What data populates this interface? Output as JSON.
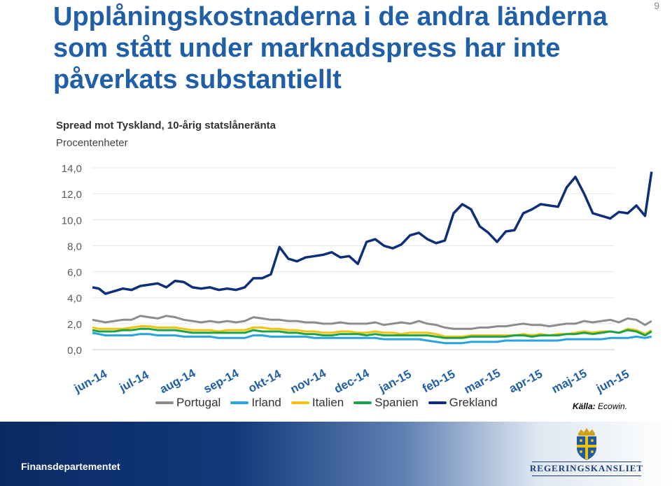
{
  "page_number": "9",
  "title": "Upplåningskostnaderna i de andra länderna som stått under marknadspress har inte påverkats substantiellt",
  "footer": {
    "department": "Finansdepartementet",
    "logo_text": "REGERINGSKANSLIET"
  },
  "source": {
    "label": "Källa:",
    "value": "Ecowin."
  },
  "colors": {
    "title": "#1f5fa8",
    "Portugal": "#8c8c8c",
    "Irland": "#27a3dd",
    "Italien": "#f4c20d",
    "Spanien": "#1ba34a",
    "Grekland": "#0d2f7a"
  },
  "chart_data": {
    "type": "line",
    "title": "Spread mot Tyskland, 10-årig statslåneränta",
    "subtitle": "Procentenheter",
    "ylim": [
      0,
      14
    ],
    "y_ticks": [
      "0,0",
      "2,0",
      "4,0",
      "6,0",
      "8,0",
      "10,0",
      "12,0",
      "14,0"
    ],
    "x_ticks": [
      "jun-14",
      "jul-14",
      "aug-14",
      "sep-14",
      "okt-14",
      "nov-14",
      "dec-14",
      "jan-15",
      "feb-15",
      "mar-15",
      "apr-15",
      "maj-15",
      "jun-15"
    ],
    "x": [
      0,
      0.15,
      0.3,
      0.5,
      0.7,
      0.9,
      1.1,
      1.3,
      1.5,
      1.7,
      1.9,
      2.1,
      2.3,
      2.5,
      2.7,
      2.9,
      3.1,
      3.3,
      3.5,
      3.7,
      3.9,
      4.1,
      4.3,
      4.5,
      4.7,
      4.9,
      5.1,
      5.3,
      5.5,
      5.7,
      5.9,
      6.1,
      6.3,
      6.5,
      6.7,
      6.9,
      7.1,
      7.3,
      7.5,
      7.7,
      7.9,
      8.1,
      8.3,
      8.5,
      8.7,
      8.9,
      9.1,
      9.3,
      9.5,
      9.7,
      9.9,
      10.1,
      10.3,
      10.5,
      10.7,
      10.9,
      11.1,
      11.3,
      11.5,
      11.7,
      11.9,
      12.1,
      12.3,
      12.5,
      12.7,
      12.85
    ],
    "series": [
      {
        "name": "Portugal",
        "values": [
          2.3,
          2.2,
          2.1,
          2.2,
          2.3,
          2.3,
          2.6,
          2.5,
          2.4,
          2.6,
          2.5,
          2.3,
          2.2,
          2.1,
          2.2,
          2.1,
          2.2,
          2.1,
          2.2,
          2.5,
          2.4,
          2.3,
          2.3,
          2.2,
          2.2,
          2.1,
          2.1,
          2.0,
          2.0,
          2.1,
          2.0,
          2.0,
          2.0,
          2.1,
          1.9,
          2.0,
          2.1,
          2.0,
          2.2,
          2.0,
          1.9,
          1.7,
          1.6,
          1.6,
          1.6,
          1.7,
          1.7,
          1.8,
          1.8,
          1.9,
          2.0,
          1.9,
          1.9,
          1.8,
          1.9,
          2.0,
          2.0,
          2.2,
          2.1,
          2.2,
          2.3,
          2.1,
          2.4,
          2.3,
          1.9,
          2.2
        ]
      },
      {
        "name": "Irland",
        "values": [
          1.3,
          1.2,
          1.1,
          1.1,
          1.1,
          1.1,
          1.2,
          1.2,
          1.1,
          1.1,
          1.1,
          1.0,
          1.0,
          1.0,
          1.0,
          0.9,
          0.9,
          0.9,
          0.9,
          1.1,
          1.1,
          1.0,
          1.0,
          1.0,
          1.0,
          1.0,
          0.9,
          0.9,
          0.9,
          0.9,
          0.9,
          0.9,
          0.9,
          0.9,
          0.8,
          0.8,
          0.8,
          0.8,
          0.8,
          0.7,
          0.6,
          0.5,
          0.5,
          0.5,
          0.6,
          0.6,
          0.6,
          0.6,
          0.7,
          0.7,
          0.7,
          0.7,
          0.7,
          0.7,
          0.7,
          0.8,
          0.8,
          0.8,
          0.8,
          0.8,
          0.9,
          0.9,
          0.9,
          1.0,
          0.9,
          1.0
        ]
      },
      {
        "name": "Italien",
        "values": [
          1.7,
          1.6,
          1.6,
          1.6,
          1.6,
          1.7,
          1.8,
          1.8,
          1.7,
          1.7,
          1.7,
          1.6,
          1.5,
          1.5,
          1.5,
          1.4,
          1.5,
          1.5,
          1.5,
          1.7,
          1.7,
          1.6,
          1.6,
          1.5,
          1.5,
          1.4,
          1.4,
          1.3,
          1.3,
          1.4,
          1.4,
          1.3,
          1.3,
          1.4,
          1.3,
          1.3,
          1.2,
          1.3,
          1.3,
          1.3,
          1.2,
          1.0,
          1.0,
          1.0,
          1.1,
          1.1,
          1.1,
          1.1,
          1.1,
          1.1,
          1.2,
          1.1,
          1.2,
          1.1,
          1.2,
          1.2,
          1.3,
          1.4,
          1.3,
          1.4,
          1.4,
          1.3,
          1.6,
          1.5,
          1.2,
          1.5
        ]
      },
      {
        "name": "Spanien",
        "values": [
          1.5,
          1.4,
          1.4,
          1.4,
          1.5,
          1.5,
          1.6,
          1.6,
          1.5,
          1.5,
          1.5,
          1.4,
          1.3,
          1.3,
          1.3,
          1.3,
          1.3,
          1.3,
          1.3,
          1.5,
          1.4,
          1.4,
          1.4,
          1.3,
          1.3,
          1.2,
          1.2,
          1.1,
          1.1,
          1.2,
          1.2,
          1.2,
          1.1,
          1.2,
          1.1,
          1.1,
          1.1,
          1.1,
          1.1,
          1.1,
          1.0,
          0.9,
          0.9,
          0.9,
          1.0,
          1.0,
          1.0,
          1.0,
          1.0,
          1.1,
          1.1,
          1.0,
          1.1,
          1.1,
          1.1,
          1.2,
          1.2,
          1.3,
          1.2,
          1.3,
          1.4,
          1.3,
          1.5,
          1.4,
          1.1,
          1.4
        ]
      },
      {
        "name": "Grekland",
        "values": [
          4.8,
          4.7,
          4.3,
          4.5,
          4.7,
          4.6,
          4.9,
          5.0,
          5.1,
          4.8,
          5.3,
          5.2,
          4.8,
          4.7,
          4.8,
          4.6,
          4.7,
          4.6,
          4.8,
          5.5,
          5.5,
          5.8,
          7.9,
          7.0,
          6.8,
          7.1,
          7.2,
          7.3,
          7.5,
          7.1,
          7.2,
          6.6,
          8.3,
          8.5,
          8.0,
          7.8,
          8.1,
          8.8,
          9.0,
          8.5,
          8.2,
          8.4,
          10.5,
          11.2,
          10.8,
          9.5,
          9.0,
          8.3,
          9.1,
          9.2,
          10.5,
          10.8,
          11.2,
          11.1,
          11.0,
          12.5,
          13.3,
          12.0,
          10.5,
          10.3,
          10.1,
          10.6,
          10.5,
          11.1,
          10.3,
          13.7
        ]
      }
    ],
    "legend_position": "bottom",
    "grid": true
  }
}
